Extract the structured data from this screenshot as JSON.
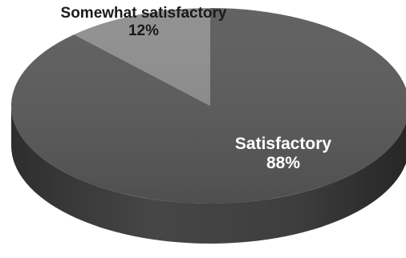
{
  "chart_data": {
    "type": "pie",
    "style": "3d",
    "slices": [
      {
        "label": "Satisfactory",
        "value": 88,
        "display": "88%",
        "color": "#595959"
      },
      {
        "label": "Somewhat satisfactory",
        "value": 12,
        "display": "12%",
        "color": "#8c8c8c"
      }
    ]
  }
}
